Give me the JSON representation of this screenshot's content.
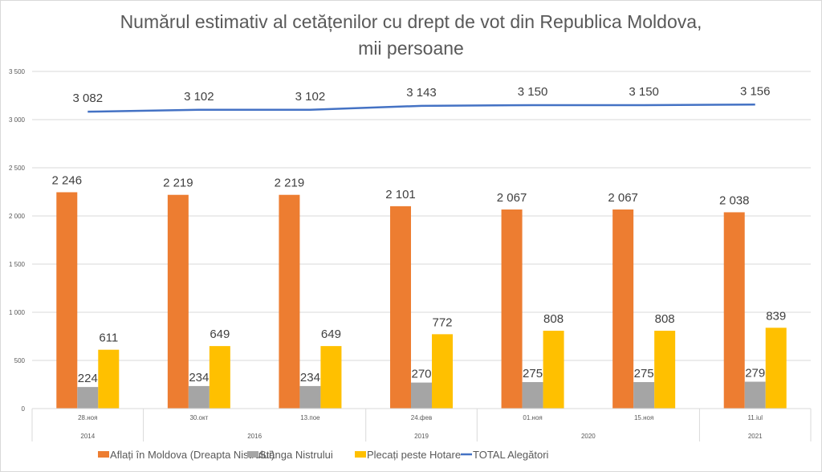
{
  "chart_data": {
    "type": "bar",
    "title": "Numărul estimativ al cetățenilor cu drept de vot din Republica Moldova,",
    "subtitle": "mii persoane",
    "xlabel": "",
    "ylabel": "",
    "ylim": [
      0,
      3500
    ],
    "yticks": [
      0,
      500,
      1000,
      1500,
      2000,
      2500,
      3000,
      3500
    ],
    "ytick_labels": [
      "0",
      "500",
      "1 000",
      "1 500",
      "2 000",
      "2 500",
      "3 000",
      "3 500"
    ],
    "grid": true,
    "legend_position": "bottom",
    "categories": [
      "28.ноя",
      "30.окт",
      "13.пое",
      "24.фев",
      "01.ноя",
      "15.ноя",
      "11.iul"
    ],
    "year_groups": [
      {
        "label": "2014",
        "span": 1
      },
      {
        "label": "2016",
        "span": 2
      },
      {
        "label": "2019",
        "span": 1
      },
      {
        "label": "2020",
        "span": 2
      },
      {
        "label": "2021",
        "span": 1
      }
    ],
    "series": [
      {
        "name": "Aflați în Moldova (Dreapta Nistrului)",
        "kind": "bar",
        "color": "#ed7d31",
        "values": [
          2246,
          2219,
          2219,
          2101,
          2067,
          2067,
          2038
        ],
        "labels": [
          "2 246",
          "2 219",
          "2 219",
          "2 101",
          "2 067",
          "2 067",
          "2 038"
        ]
      },
      {
        "name": "Stânga Nistrului",
        "kind": "bar",
        "color": "#a5a5a5",
        "values": [
          224,
          234,
          234,
          270,
          275,
          275,
          279
        ],
        "labels": [
          "224",
          "234",
          "234",
          "270",
          "275",
          "275",
          "279"
        ]
      },
      {
        "name": "Plecați peste Hotare",
        "kind": "bar",
        "color": "#ffc000",
        "values": [
          611,
          649,
          649,
          772,
          808,
          808,
          839
        ],
        "labels": [
          "611",
          "649",
          "649",
          "772",
          "808",
          "808",
          "839"
        ]
      },
      {
        "name": "TOTAL Alegători",
        "kind": "line",
        "color": "#4472c4",
        "values": [
          3082,
          3102,
          3102,
          3143,
          3150,
          3150,
          3156
        ],
        "labels": [
          "3 082",
          "3 102",
          "3 102",
          "3 143",
          "3 150",
          "3 150",
          "3 156"
        ]
      }
    ]
  }
}
